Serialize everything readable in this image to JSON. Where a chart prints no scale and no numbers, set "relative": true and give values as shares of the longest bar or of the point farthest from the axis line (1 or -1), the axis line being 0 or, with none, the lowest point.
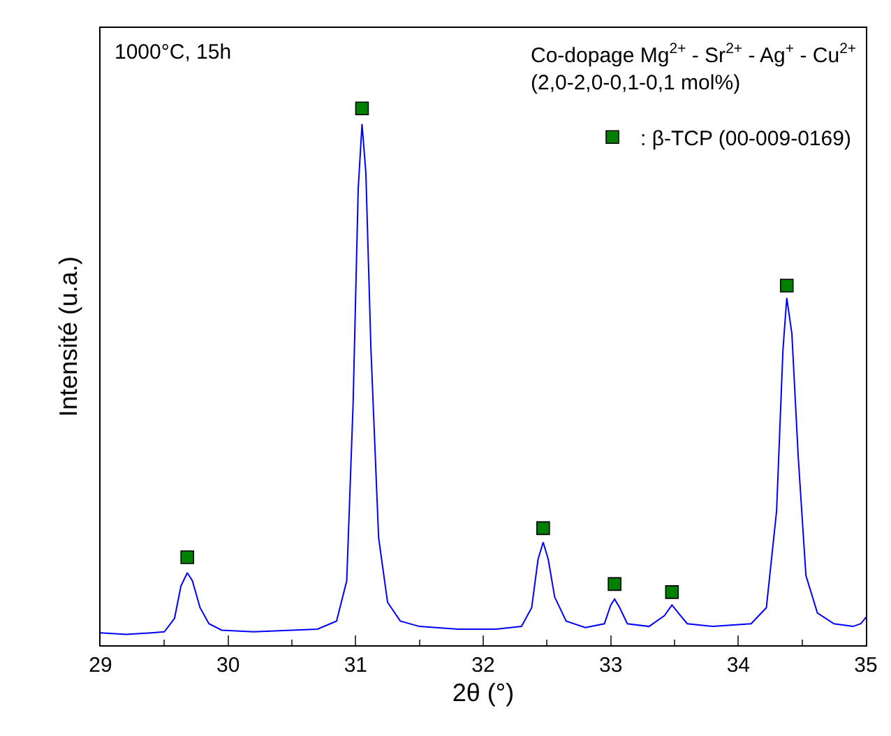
{
  "chart_data": {
    "type": "line",
    "relative": true,
    "xlabel": "2θ (°)",
    "ylabel": "Intensité (u.a.)",
    "xlim": [
      29,
      35
    ],
    "xticks": [
      29,
      30,
      31,
      32,
      33,
      34,
      35
    ],
    "legend": "top right",
    "tick_labels": "x",
    "annotations": [
      "1000°C, 15h",
      "Co-dopage Mg$^{2+}$ - Sr$^{2+}$ - Ag$^{+}$ - Cu$^{2+}$",
      "(2,0-2,0-0,1-0,1 mol%)"
    ],
    "series": [
      {
        "color": "#0000ff",
        "marker": "none",
        "line_style": "solid",
        "x": [
          29.0,
          29.2,
          29.4,
          29.5,
          29.58,
          29.63,
          29.68,
          29.72,
          29.78,
          29.85,
          29.95,
          30.2,
          30.5,
          30.7,
          30.85,
          30.93,
          30.98,
          31.02,
          31.05,
          31.08,
          31.12,
          31.18,
          31.25,
          31.35,
          31.5,
          31.8,
          32.1,
          32.3,
          32.38,
          32.43,
          32.47,
          32.51,
          32.56,
          32.65,
          32.8,
          32.95,
          33.0,
          33.03,
          33.07,
          33.13,
          33.3,
          33.42,
          33.48,
          33.53,
          33.6,
          33.8,
          34.1,
          34.22,
          34.3,
          34.35,
          34.38,
          34.42,
          34.47,
          34.53,
          34.62,
          34.75,
          34.9,
          34.96,
          35.0
        ],
        "values": [
          0.023,
          0.02,
          0.023,
          0.025,
          0.05,
          0.11,
          0.135,
          0.12,
          0.07,
          0.04,
          0.028,
          0.025,
          0.028,
          0.03,
          0.045,
          0.12,
          0.45,
          0.85,
          0.971,
          0.88,
          0.55,
          0.2,
          0.08,
          0.045,
          0.035,
          0.03,
          0.03,
          0.035,
          0.07,
          0.16,
          0.192,
          0.16,
          0.09,
          0.045,
          0.033,
          0.04,
          0.075,
          0.086,
          0.07,
          0.04,
          0.035,
          0.055,
          0.075,
          0.06,
          0.04,
          0.035,
          0.04,
          0.07,
          0.25,
          0.55,
          0.647,
          0.58,
          0.35,
          0.13,
          0.06,
          0.04,
          0.035,
          0.04,
          0.052
        ]
      },
      {
        "type": "scatter",
        "name": ": β-TCP (00-009-0169)",
        "color": "#008000",
        "marker": "square",
        "x": [
          29.68,
          31.05,
          32.47,
          33.03,
          33.48,
          34.38
        ],
        "values": [
          0.164,
          1.0,
          0.218,
          0.114,
          0.099,
          0.67
        ]
      }
    ]
  }
}
